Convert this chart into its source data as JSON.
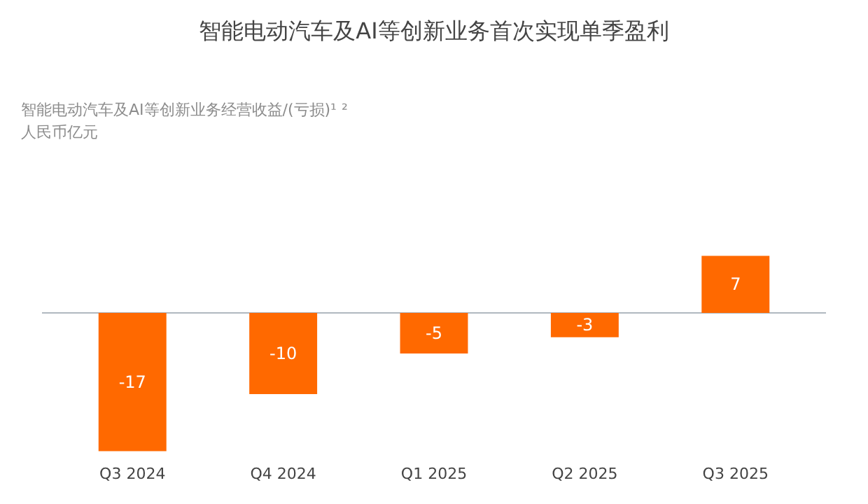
{
  "chart_data": {
    "type": "bar",
    "title": "智能电动汽车及AI等创新业务首次实现单季盈利",
    "subtitle": "智能电动汽车及AI等创新业务经营收益/(亏损)¹ ²",
    "annotations": [
      "人民币亿元"
    ],
    "categories": [
      "Q3 2024",
      "Q4 2024",
      "Q1 2025",
      "Q2 2025",
      "Q3 2025"
    ],
    "values": [
      -17,
      -10,
      -5,
      -3,
      7
    ],
    "color": "#ff6900",
    "data_labels": true
  }
}
